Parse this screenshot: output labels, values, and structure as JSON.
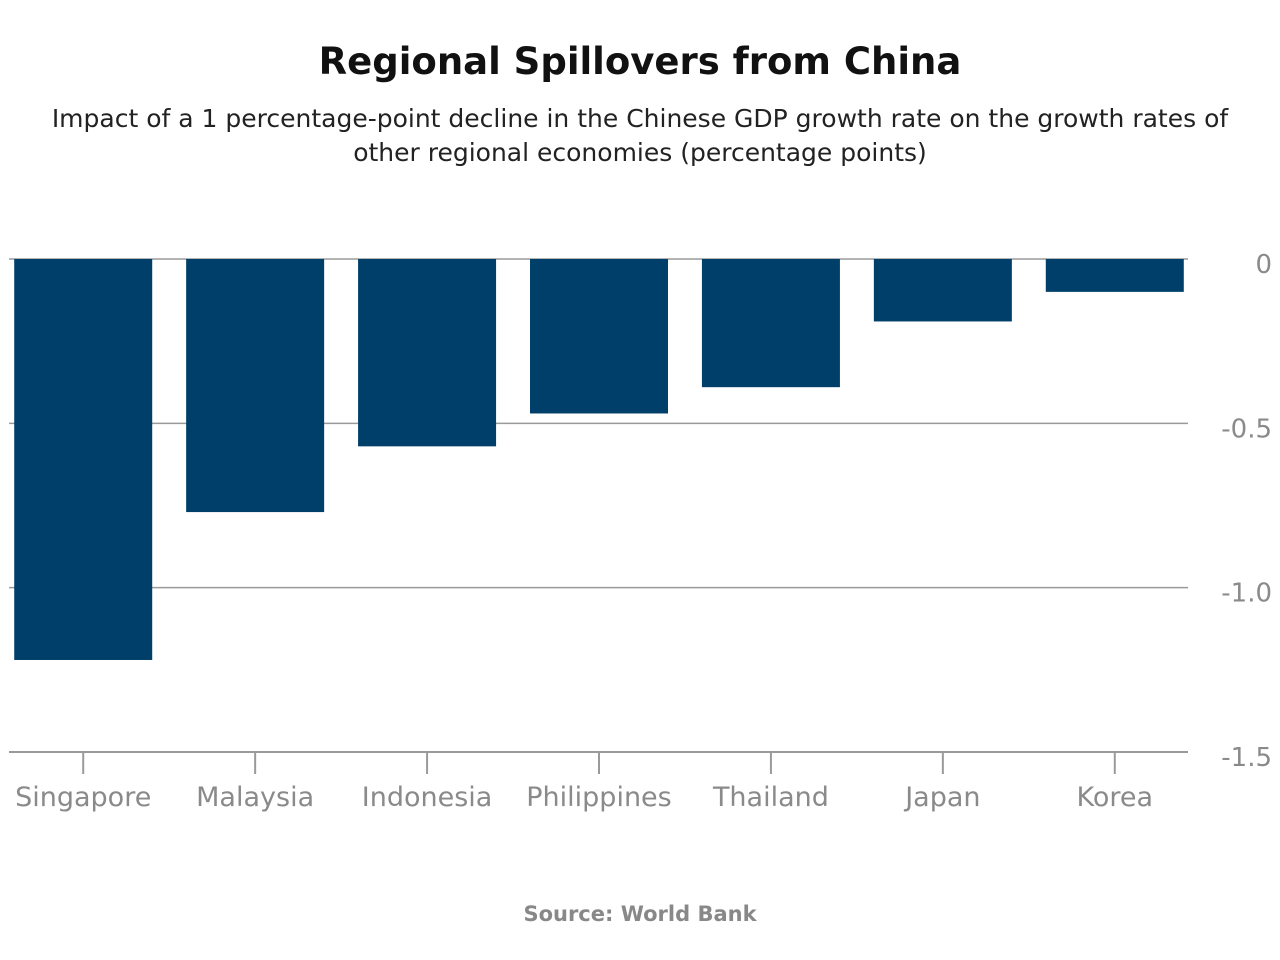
{
  "chart_data": {
    "type": "bar",
    "title": "Regional Spillovers from China",
    "subtitle": "Impact of a 1 percentage-point decline in the Chinese GDP growth rate on the growth rates of other regional economies (percentage points)",
    "source": "Source: World Bank",
    "categories": [
      "Singapore",
      "Malaysia",
      "Indonesia",
      "Philippines",
      "Thailand",
      "Japan",
      "Korea"
    ],
    "values": [
      -1.22,
      -0.77,
      -0.57,
      -0.47,
      -0.39,
      -0.19,
      -0.1
    ],
    "ylim": [
      -1.5,
      0
    ],
    "yticks": [
      0,
      -0.5,
      -1.0,
      -1.5
    ],
    "ytick_labels": [
      "0",
      "-0.5",
      "-1.0",
      "-1.5"
    ],
    "xlabel": "",
    "ylabel": "",
    "grid": true,
    "y_axis_side": "right",
    "colors": {
      "bar": "#003f69",
      "grid": "#9a9a9a",
      "text": "#8a8a8a"
    }
  }
}
